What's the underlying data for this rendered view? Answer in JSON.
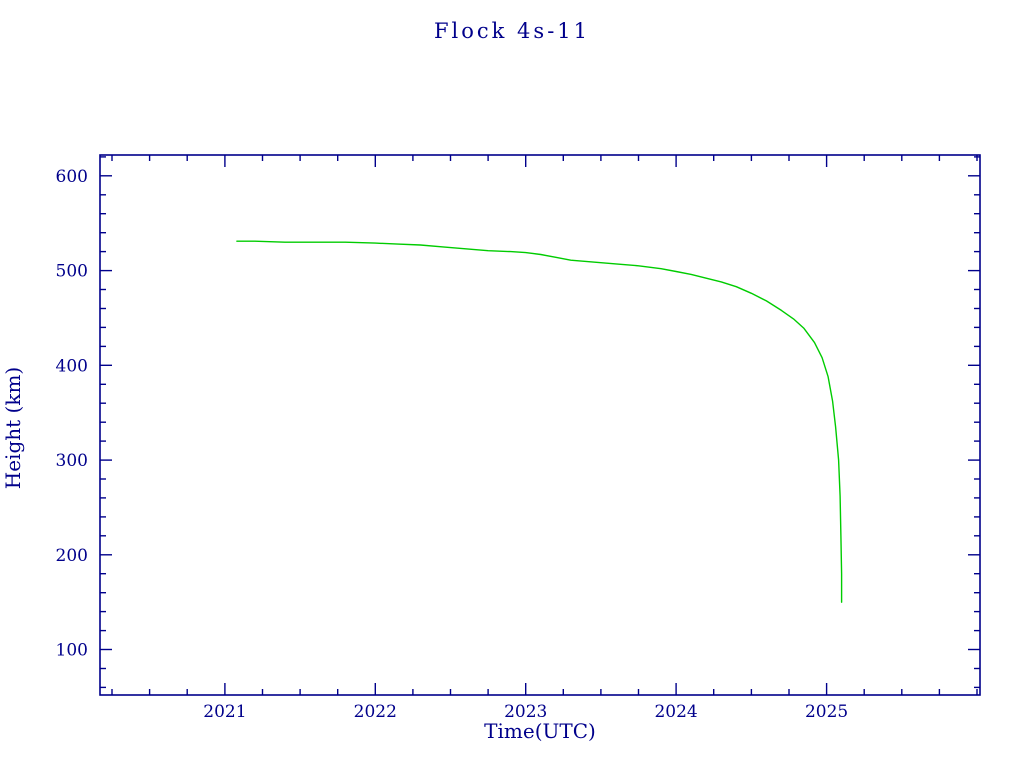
{
  "colors": {
    "axis": "#00008B",
    "line": "#00CC00",
    "background": "#FFFFFF"
  },
  "chart_data": {
    "type": "line",
    "title": "Flock 4s-11",
    "xlabel": "Time(UTC)",
    "ylabel": "Height (km)",
    "xlim": [
      2020.17,
      2026.02
    ],
    "ylim": [
      52,
      622
    ],
    "x_ticks": [
      2021,
      2022,
      2023,
      2024,
      2025
    ],
    "y_ticks": [
      100,
      200,
      300,
      400,
      500,
      600
    ],
    "x_minor_step": 0.25,
    "y_minor_step": 20,
    "grid": false,
    "legend": false,
    "series": [
      {
        "name": "Flock 4s-11 height",
        "color": "#00CC00",
        "x": [
          2021.08,
          2021.2,
          2021.4,
          2021.6,
          2021.8,
          2022.0,
          2022.15,
          2022.3,
          2022.45,
          2022.6,
          2022.75,
          2022.9,
          2023.0,
          2023.1,
          2023.2,
          2023.3,
          2023.45,
          2023.6,
          2023.75,
          2023.9,
          2024.0,
          2024.1,
          2024.2,
          2024.3,
          2024.4,
          2024.5,
          2024.6,
          2024.7,
          2024.78,
          2024.85,
          2024.92,
          2024.97,
          2025.01,
          2025.04,
          2025.06,
          2025.08,
          2025.09,
          2025.095,
          2025.1,
          2025.1
        ],
        "y": [
          531,
          531,
          530,
          530,
          530,
          529,
          528,
          527,
          525,
          523,
          521,
          520,
          519,
          517,
          514,
          511,
          509,
          507,
          505,
          502,
          499,
          496,
          492,
          488,
          483,
          476,
          468,
          458,
          449,
          439,
          424,
          408,
          388,
          362,
          335,
          300,
          262,
          220,
          180,
          150
        ]
      }
    ]
  }
}
